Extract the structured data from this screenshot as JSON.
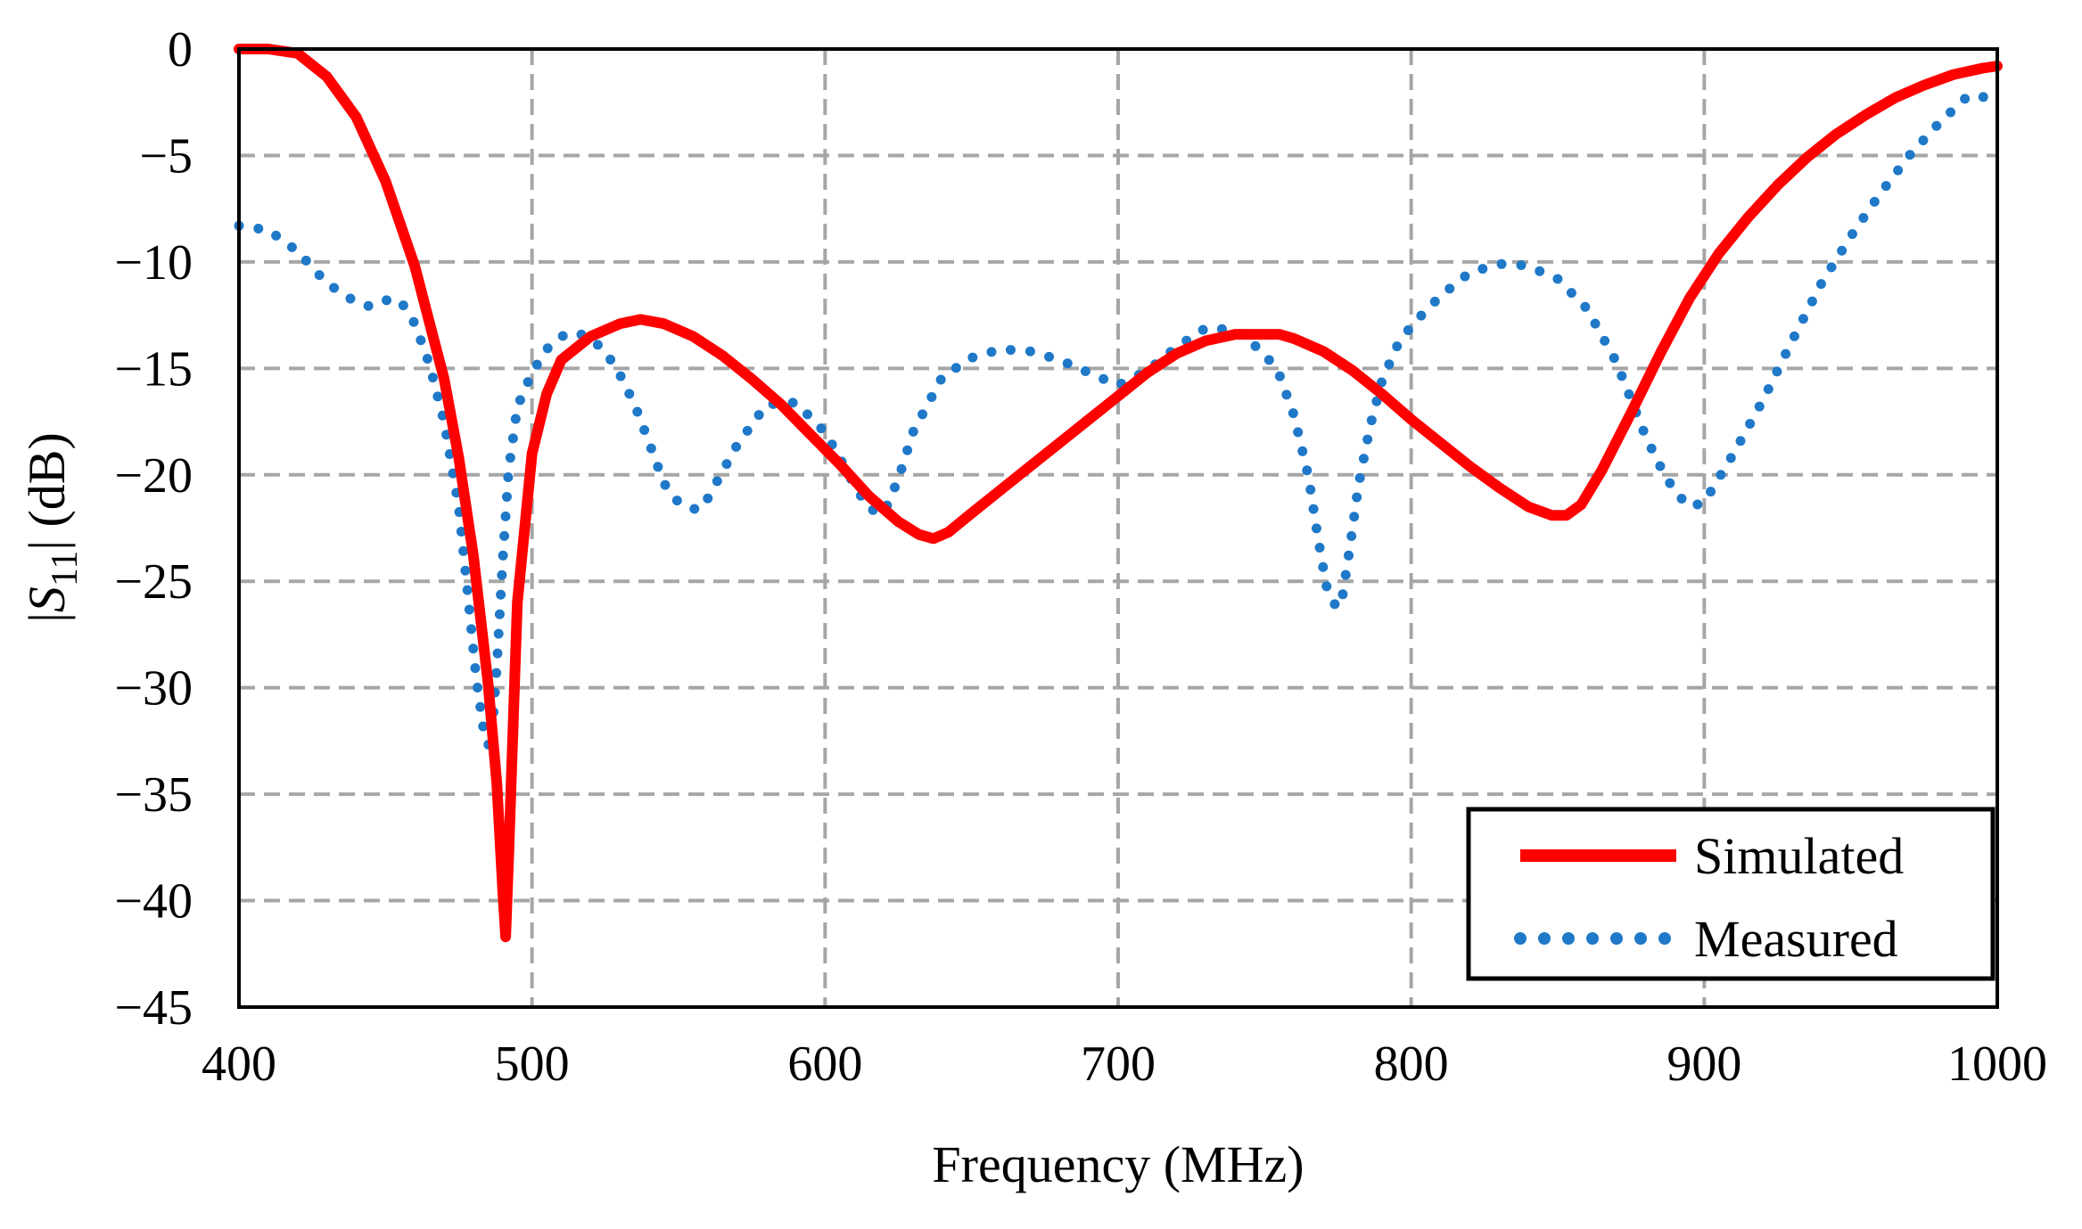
{
  "chart_data": {
    "type": "line",
    "title": "",
    "xlabel": "Frequency (MHz)",
    "ylabel_parts": {
      "pre": "|",
      "symbol": "S",
      "sub": "11",
      "post": "| (dB)"
    },
    "xlim": [
      400,
      1000
    ],
    "ylim": [
      -45,
      0
    ],
    "xticks": [
      400,
      500,
      600,
      700,
      800,
      900,
      1000
    ],
    "xtick_labels": [
      "400",
      "500",
      "600",
      "700",
      "800",
      "900",
      "1000"
    ],
    "yticks": [
      0,
      -5,
      -10,
      -15,
      -20,
      -25,
      -30,
      -35,
      -40,
      -45
    ],
    "ytick_labels": [
      "0",
      "−5",
      "−10",
      "−15",
      "−20",
      "−25",
      "−30",
      "−35",
      "−40",
      "−45"
    ],
    "grid": true,
    "legend_position": "bottom-right",
    "series": [
      {
        "name": "Simulated",
        "style": "solid",
        "color": "#ff0000",
        "x": [
          400,
          410,
          420,
          430,
          440,
          450,
          460,
          470,
          475,
          480,
          485,
          488,
          490,
          491,
          492,
          495,
          500,
          505,
          510,
          520,
          530,
          537,
          545,
          555,
          565,
          575,
          585,
          595,
          605,
          615,
          625,
          632,
          637,
          642,
          650,
          660,
          670,
          680,
          690,
          700,
          710,
          720,
          730,
          740,
          750,
          755,
          760,
          770,
          780,
          790,
          800,
          810,
          820,
          830,
          840,
          848,
          853,
          858,
          865,
          875,
          885,
          895,
          905,
          915,
          925,
          935,
          945,
          955,
          965,
          975,
          985,
          995,
          1000
        ],
        "y": [
          0,
          0,
          -0.2,
          -1.3,
          -3.2,
          -6.2,
          -10.2,
          -15.5,
          -19.2,
          -23.8,
          -29.8,
          -34.5,
          -39.5,
          -41.7,
          -38,
          -26,
          -19,
          -16.2,
          -14.6,
          -13.5,
          -12.9,
          -12.7,
          -12.9,
          -13.5,
          -14.4,
          -15.5,
          -16.7,
          -18.1,
          -19.5,
          -21,
          -22.2,
          -22.8,
          -23,
          -22.7,
          -21.8,
          -20.7,
          -19.6,
          -18.5,
          -17.4,
          -16.3,
          -15.2,
          -14.3,
          -13.7,
          -13.4,
          -13.4,
          -13.4,
          -13.6,
          -14.2,
          -15.1,
          -16.2,
          -17.4,
          -18.5,
          -19.6,
          -20.6,
          -21.5,
          -21.9,
          -21.9,
          -21.4,
          -19.8,
          -17.1,
          -14.3,
          -11.7,
          -9.6,
          -7.9,
          -6.4,
          -5.1,
          -4,
          -3.1,
          -2.3,
          -1.7,
          -1.2,
          -0.9,
          -0.8
        ]
      },
      {
        "name": "Measured",
        "style": "dotted",
        "color": "#1f78c8",
        "x": [
          400,
          410,
          420,
          430,
          440,
          445,
          450,
          455,
          460,
          465,
          470,
          475,
          478,
          481,
          484,
          486,
          488,
          490,
          492,
          495,
          500,
          505,
          510,
          515,
          520,
          525,
          530,
          535,
          540,
          545,
          550,
          555,
          558,
          562,
          570,
          580,
          590,
          600,
          605,
          610,
          615,
          620,
          625,
          630,
          640,
          650,
          660,
          670,
          680,
          690,
          700,
          710,
          720,
          730,
          740,
          750,
          755,
          760,
          765,
          768,
          771,
          774,
          776,
          779,
          782,
          786,
          790,
          795,
          800,
          810,
          820,
          830,
          835,
          840,
          850,
          860,
          870,
          880,
          885,
          890,
          895,
          900,
          910,
          920,
          930,
          940,
          950,
          960,
          970,
          980,
          990,
          1000
        ],
        "y": [
          -8.3,
          -8.5,
          -9.5,
          -11,
          -11.9,
          -12.1,
          -11.8,
          -11.8,
          -12.9,
          -14.8,
          -17.5,
          -21.5,
          -25.5,
          -29.6,
          -32.5,
          -32.8,
          -29,
          -24,
          -19.8,
          -16.8,
          -15.2,
          -14.1,
          -13.5,
          -13.3,
          -13.6,
          -14.2,
          -15.3,
          -16.7,
          -18.5,
          -20.4,
          -21.3,
          -21.6,
          -21.6,
          -20.6,
          -18.6,
          -16.7,
          -16.6,
          -18,
          -19.2,
          -20.5,
          -21.6,
          -21.8,
          -20.2,
          -18,
          -15.4,
          -14.5,
          -14.1,
          -14.2,
          -14.6,
          -15.2,
          -15.8,
          -15.1,
          -14,
          -13.1,
          -13.2,
          -14.3,
          -15.3,
          -17.2,
          -20.1,
          -22.8,
          -25.2,
          -26.1,
          -26.2,
          -23.5,
          -20.5,
          -17.7,
          -15.6,
          -14,
          -13,
          -11.6,
          -10.5,
          -10.1,
          -10.1,
          -10.2,
          -10.8,
          -12.2,
          -14.7,
          -18.2,
          -19.6,
          -20.8,
          -21.5,
          -21.3,
          -19,
          -16.5,
          -13.7,
          -11,
          -8.8,
          -6.8,
          -5,
          -3.5,
          -2.2,
          -2.3
        ]
      }
    ]
  }
}
